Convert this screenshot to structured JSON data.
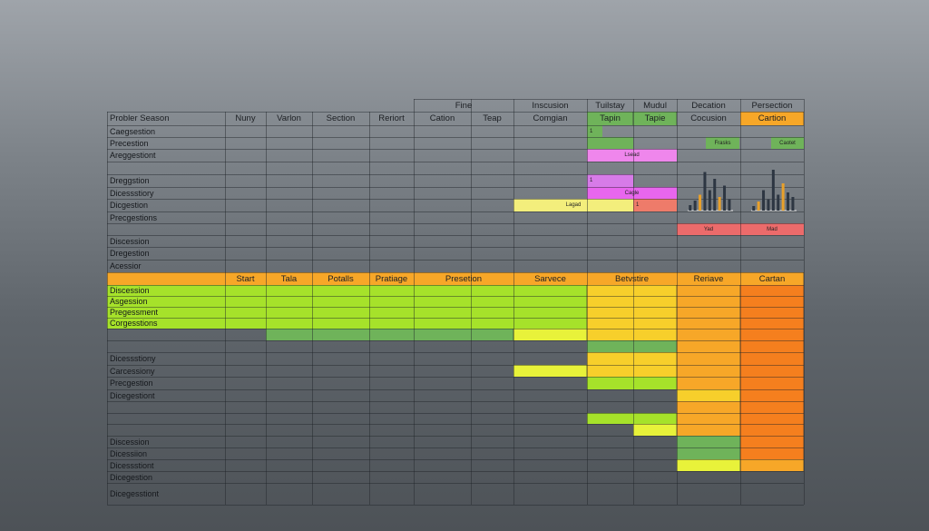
{
  "colors": {
    "lime": "#a6e22a",
    "yellow": "#f7cf2b",
    "bright_yellow": "#e8f23a",
    "orange": "#f7a728",
    "deep_orange": "#f57f1e",
    "green": "#6fb35a",
    "pale_yellow": "#f3ee7c",
    "magenta": "#e866ee",
    "violet": "#d77be8",
    "pink": "#ef86ec",
    "red": "#ec6b6b",
    "salmon": "#ee7b6a",
    "chart_dark": "#2d3642",
    "chart_accent": "#e8a02a"
  },
  "header_top": [
    "Fine",
    "Inscusion",
    "Tuilstay",
    "Mudul",
    "Decation",
    "Persection"
  ],
  "header_main": [
    "Probler Season",
    "Nuny",
    "Varlon",
    "Section",
    "Reriort",
    "Cation",
    "Teap",
    "Comgian",
    "Tapin",
    "Tapie",
    "Cocusion",
    "Cartion"
  ],
  "upper_labels": [
    "Caegsestion",
    "Precestion",
    "Areggestiont",
    "",
    "Dreggstion",
    "Dicessstiory",
    "Dicgestion",
    "Precgestions",
    "",
    "Discession",
    "Dregestion",
    "Acessior"
  ],
  "lower_header": [
    "",
    "Start",
    "Tala",
    "Potalls",
    "Pratiage",
    "Presetion",
    "Sarvece",
    "Betvstire",
    "Reriave",
    "Cartan"
  ],
  "lower_labels": [
    "Discession",
    "Asgession",
    "Pregessment",
    "Corgesstions",
    "",
    "",
    "Dicessstiony",
    "Carcessiony",
    "Precgestion",
    "Dicegestiont",
    "",
    "",
    "",
    "Discession",
    "Dicessiion",
    "Dicessstiont",
    "Dicegestion",
    "Dicegesstiont"
  ],
  "upper_bars": [
    {
      "label": "1"
    },
    {
      "label": ""
    },
    {
      "label": "Frasks"
    },
    {
      "label": "Caotet"
    },
    {
      "label": "1"
    },
    {
      "label": "Lsead"
    },
    {
      "label": "1"
    },
    {
      "label": "Cagle"
    },
    {
      "label": "Lagad"
    },
    {
      "label": "1"
    },
    {
      "label": "1"
    },
    {
      "label": "Yad"
    },
    {
      "label": "Mad"
    }
  ],
  "minicharts": [
    {
      "values": [
        0.12,
        0.22,
        0.35,
        0.85,
        0.45,
        0.7,
        0.3,
        0.55,
        0.25
      ],
      "accents": [
        2,
        6
      ]
    },
    {
      "values": [
        0.1,
        0.2,
        0.45,
        0.25,
        0.9,
        0.35,
        0.6,
        0.4,
        0.3
      ],
      "accents": [
        1,
        6
      ]
    }
  ]
}
